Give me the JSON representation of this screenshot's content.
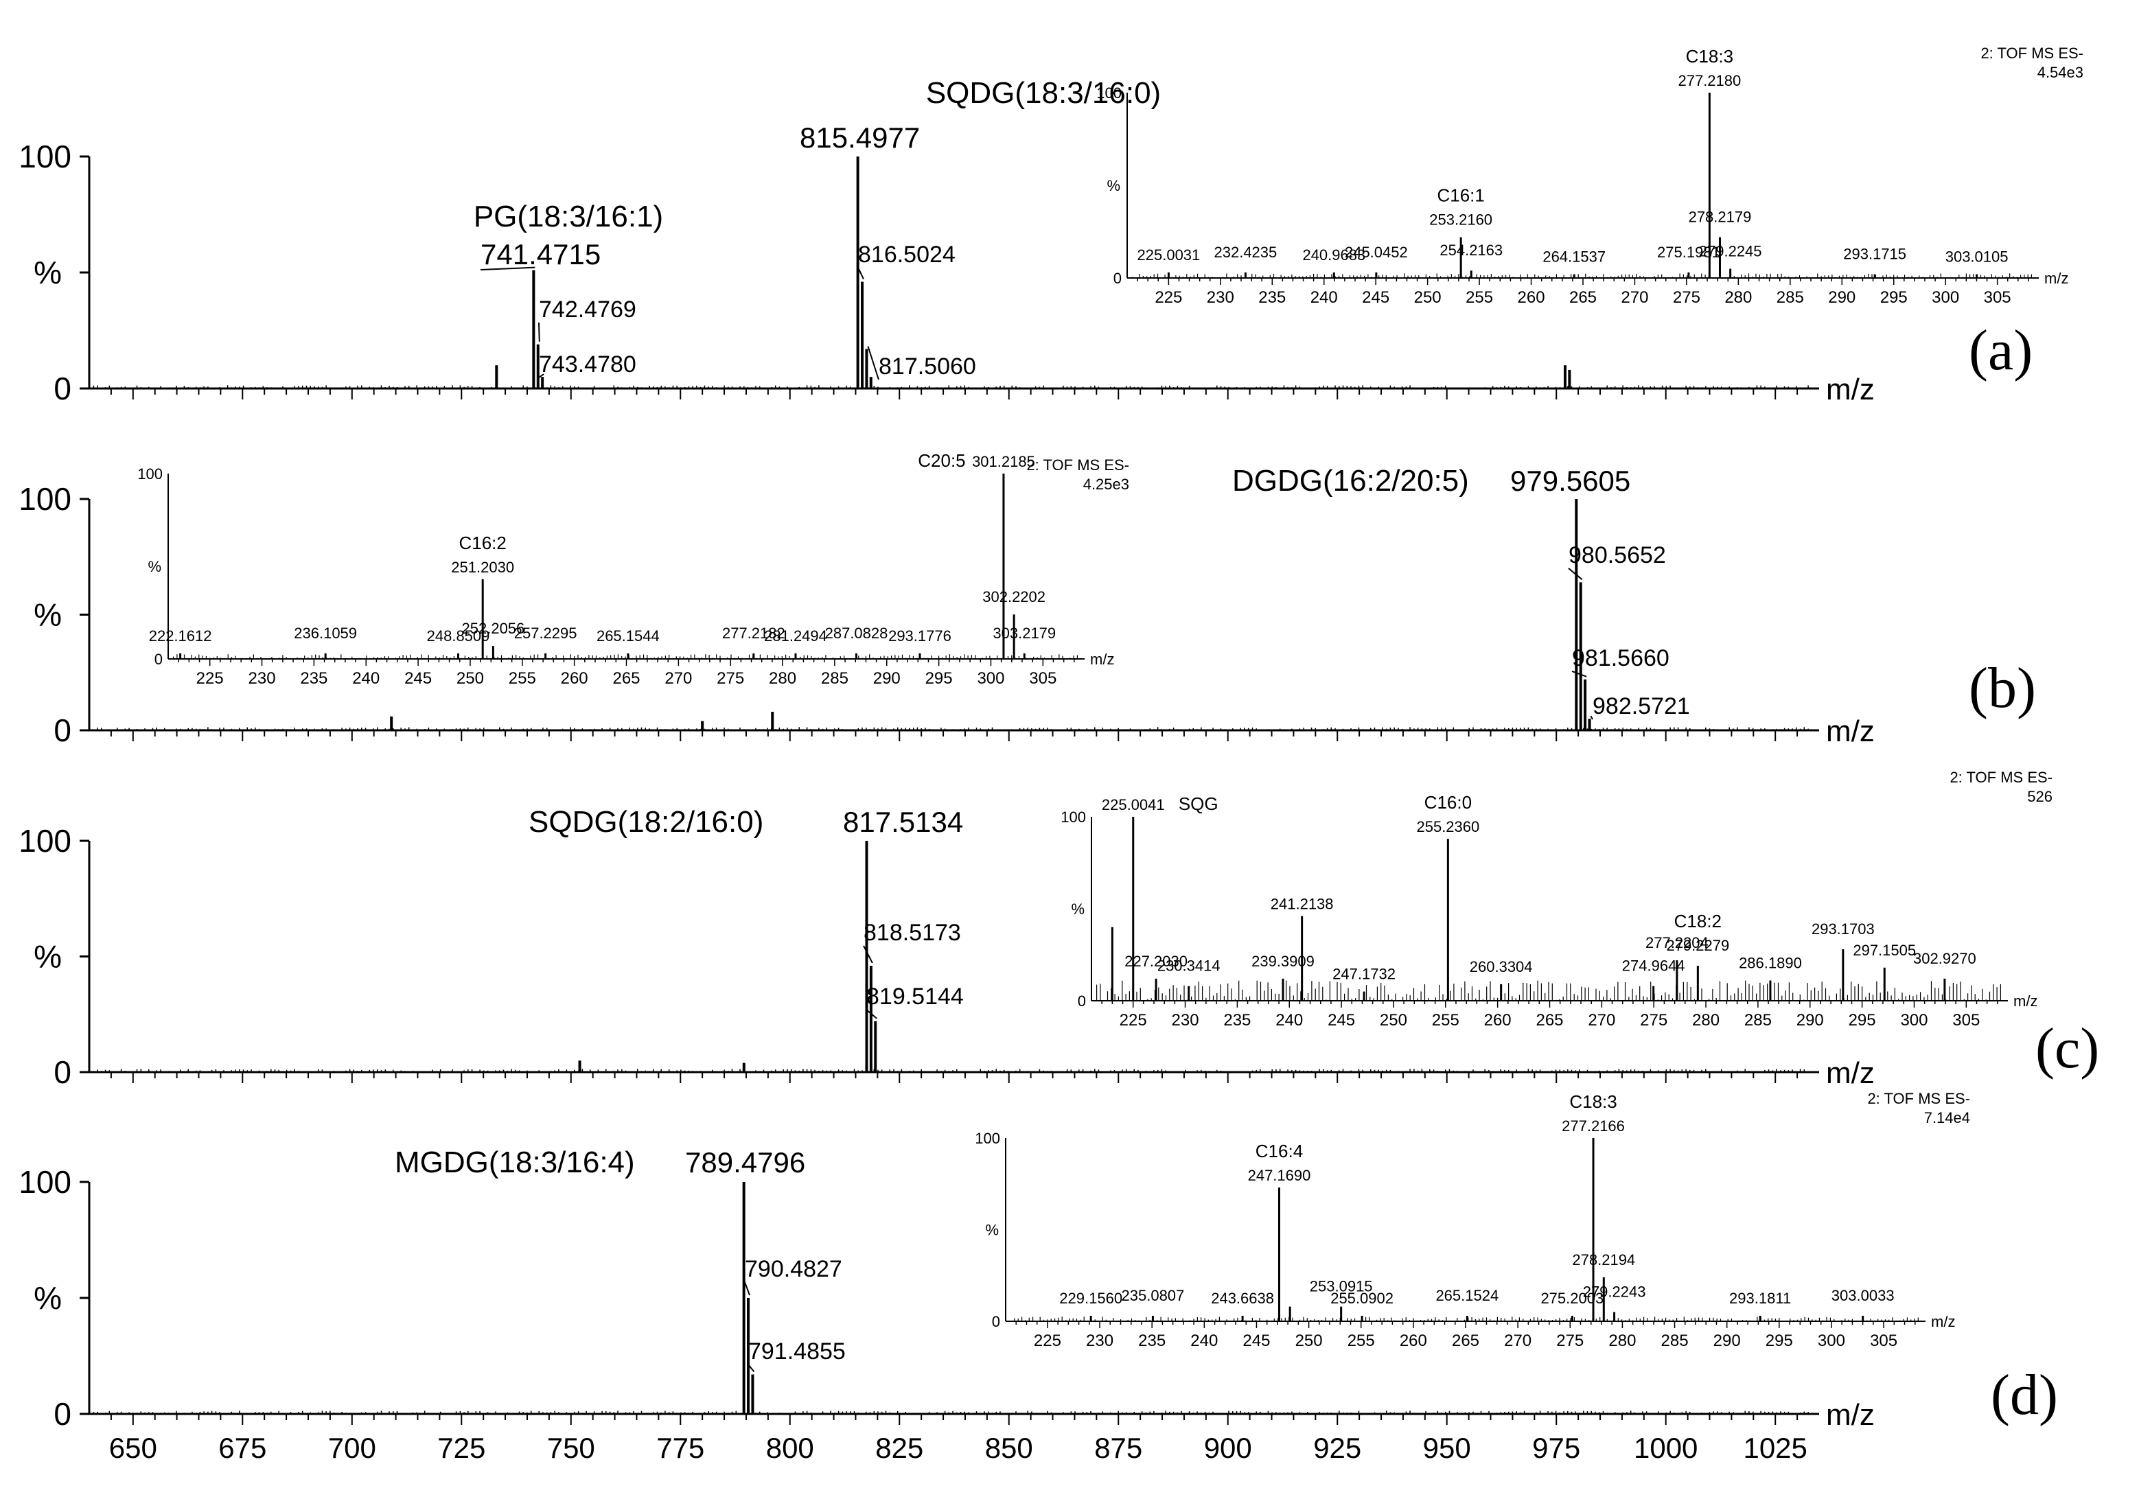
{
  "figure_description_free": true,
  "axis": {
    "x_unit": "m/z",
    "y_unit": "%",
    "y_ticks": [
      "0",
      "100"
    ],
    "y_mid": "%",
    "main_xlim": [
      640,
      1035
    ],
    "main_xticks": [
      650,
      675,
      700,
      725,
      750,
      775,
      800,
      825,
      850,
      875,
      900,
      925,
      950,
      975,
      1000,
      1025
    ],
    "inset_xlim": [
      221,
      309
    ],
    "inset_xticks": [
      225,
      230,
      235,
      240,
      245,
      250,
      255,
      260,
      265,
      270,
      275,
      280,
      285,
      290,
      295,
      300,
      305
    ]
  },
  "chart_data": [
    {
      "type": "line",
      "panel": "(a)",
      "title": "",
      "xlabel": "m/z",
      "ylabel": "%",
      "ylim": [
        0,
        100
      ],
      "xlim": [
        640,
        1035
      ],
      "compound_label": "SQDG(18:3/16:0)",
      "compound_label_2": "PG(18:3/16:1)",
      "peaks": [
        {
          "mz": 733.0,
          "intensity": 10,
          "label": ""
        },
        {
          "mz": 741.4715,
          "intensity": 51,
          "label": "741.4715"
        },
        {
          "mz": 742.4769,
          "intensity": 19,
          "label": "742.4769"
        },
        {
          "mz": 743.478,
          "intensity": 5,
          "label": "743.4780"
        },
        {
          "mz": 815.4977,
          "intensity": 100,
          "label": "815.4977"
        },
        {
          "mz": 816.5024,
          "intensity": 46,
          "label": "816.5024"
        },
        {
          "mz": 817.506,
          "intensity": 17,
          "label": "817.5060"
        },
        {
          "mz": 818.5,
          "intensity": 5,
          "label": ""
        },
        {
          "mz": 977.0,
          "intensity": 10,
          "label": ""
        },
        {
          "mz": 978.0,
          "intensity": 8,
          "label": ""
        }
      ],
      "inset": {
        "header": "2: TOF MS ES-",
        "scale": "4.54e3",
        "ylim": [
          0,
          100
        ],
        "xlim": [
          221,
          309
        ],
        "peaks": [
          {
            "mz": 225.0031,
            "intensity": 3,
            "label": "225.0031",
            "group": ""
          },
          {
            "mz": 232.4235,
            "intensity": 3,
            "label": "232.4235",
            "group": ""
          },
          {
            "mz": 240.9683,
            "intensity": 3,
            "label": "240.9683",
            "group": ""
          },
          {
            "mz": 245.0452,
            "intensity": 3,
            "label": "245.0452",
            "group": ""
          },
          {
            "mz": 253.216,
            "intensity": 22,
            "label": "253.2160",
            "group": "C16:1"
          },
          {
            "mz": 254.2163,
            "intensity": 4,
            "label": "254.2163",
            "group": ""
          },
          {
            "mz": 264.1537,
            "intensity": 2,
            "label": "264.1537",
            "group": ""
          },
          {
            "mz": 275.1981,
            "intensity": 3,
            "label": "275.1981",
            "group": ""
          },
          {
            "mz": 277.218,
            "intensity": 100,
            "label": "277.2180",
            "group": "C18:3"
          },
          {
            "mz": 278.2179,
            "intensity": 22,
            "label": "278.2179",
            "group": ""
          },
          {
            "mz": 279.2245,
            "intensity": 5,
            "label": "279.2245",
            "group": ""
          },
          {
            "mz": 293.1715,
            "intensity": 2,
            "label": "293.1715",
            "group": ""
          },
          {
            "mz": 303.0105,
            "intensity": 2,
            "label": "303.0105",
            "group": ""
          }
        ]
      }
    },
    {
      "type": "line",
      "panel": "(b)",
      "title": "",
      "xlabel": "m/z",
      "ylabel": "%",
      "ylim": [
        0,
        100
      ],
      "xlim": [
        640,
        1035
      ],
      "compound_label": "DGDG(16:2/20:5)",
      "peaks": [
        {
          "mz": 709.0,
          "intensity": 6,
          "label": ""
        },
        {
          "mz": 780.0,
          "intensity": 4,
          "label": ""
        },
        {
          "mz": 796.0,
          "intensity": 8,
          "label": ""
        },
        {
          "mz": 979.5605,
          "intensity": 100,
          "label": "979.5605"
        },
        {
          "mz": 980.5652,
          "intensity": 64,
          "label": "980.5652"
        },
        {
          "mz": 981.566,
          "intensity": 22,
          "label": "981.5660"
        },
        {
          "mz": 982.5721,
          "intensity": 5,
          "label": "982.5721"
        }
      ],
      "inset": {
        "header": "2: TOF MS ES-",
        "scale": "4.25e3",
        "ylim": [
          0,
          100
        ],
        "xlim": [
          221,
          309
        ],
        "peaks": [
          {
            "mz": 222.1612,
            "intensity": 3,
            "label": "222.1612",
            "group": ""
          },
          {
            "mz": 236.1059,
            "intensity": 3,
            "label": "236.1059",
            "group": ""
          },
          {
            "mz": 248.8509,
            "intensity": 3,
            "label": "248.8509",
            "group": ""
          },
          {
            "mz": 251.203,
            "intensity": 43,
            "label": "251.2030",
            "group": "C16:2"
          },
          {
            "mz": 252.2056,
            "intensity": 7,
            "label": "252.2056",
            "group": ""
          },
          {
            "mz": 257.2295,
            "intensity": 3,
            "label": "257.2295",
            "group": ""
          },
          {
            "mz": 265.1544,
            "intensity": 3,
            "label": "265.1544",
            "group": ""
          },
          {
            "mz": 277.2182,
            "intensity": 3,
            "label": "277.2182",
            "group": ""
          },
          {
            "mz": 281.2494,
            "intensity": 3,
            "label": "281.2494",
            "group": ""
          },
          {
            "mz": 287.0828,
            "intensity": 3,
            "label": "287.0828",
            "group": ""
          },
          {
            "mz": 293.1776,
            "intensity": 3,
            "label": "293.1776",
            "group": ""
          },
          {
            "mz": 301.2185,
            "intensity": 100,
            "label": "301.2185",
            "group": "C20:5"
          },
          {
            "mz": 302.2202,
            "intensity": 24,
            "label": "302.2202",
            "group": ""
          },
          {
            "mz": 303.2179,
            "intensity": 3,
            "label": "303.2179",
            "group": ""
          }
        ]
      }
    },
    {
      "type": "line",
      "panel": "(c)",
      "title": "",
      "xlabel": "m/z",
      "ylabel": "%",
      "ylim": [
        0,
        100
      ],
      "xlim": [
        640,
        1035
      ],
      "compound_label": "SQDG(18:2/16:0)",
      "peaks": [
        {
          "mz": 752.0,
          "intensity": 5,
          "label": ""
        },
        {
          "mz": 789.5,
          "intensity": 4,
          "label": ""
        },
        {
          "mz": 817.5134,
          "intensity": 100,
          "label": "817.5134"
        },
        {
          "mz": 818.5173,
          "intensity": 46,
          "label": "818.5173"
        },
        {
          "mz": 819.5144,
          "intensity": 22,
          "label": "819.5144"
        }
      ],
      "inset": {
        "header": "2: TOF MS ES-",
        "scale": "526",
        "ylim": [
          0,
          100
        ],
        "xlim": [
          221,
          309
        ],
        "peaks": [
          {
            "mz": 223.0,
            "intensity": 40,
            "label": "",
            "group": ""
          },
          {
            "mz": 225.0041,
            "intensity": 100,
            "label": "225.0041",
            "group": "SQG"
          },
          {
            "mz": 227.203,
            "intensity": 12,
            "label": "227.2030",
            "group": ""
          },
          {
            "mz": 230.3414,
            "intensity": 8,
            "label": "230.3414",
            "group": ""
          },
          {
            "mz": 239.3909,
            "intensity": 12,
            "label": "239.3909",
            "group": ""
          },
          {
            "mz": 241.2138,
            "intensity": 46,
            "label": "241.2138",
            "group": ""
          },
          {
            "mz": 247.1732,
            "intensity": 5,
            "label": "247.1732",
            "group": ""
          },
          {
            "mz": 255.236,
            "intensity": 88,
            "label": "255.2360",
            "group": "C16:0"
          },
          {
            "mz": 260.3304,
            "intensity": 9,
            "label": "260.3304",
            "group": ""
          },
          {
            "mz": 274.9644,
            "intensity": 8,
            "label": "274.9644",
            "group": ""
          },
          {
            "mz": 277.2204,
            "intensity": 22,
            "label": "277.2204",
            "group": ""
          },
          {
            "mz": 279.2279,
            "intensity": 19,
            "label": "279.2279",
            "group": "C18:2"
          },
          {
            "mz": 286.189,
            "intensity": 11,
            "label": "286.1890",
            "group": ""
          },
          {
            "mz": 293.1703,
            "intensity": 28,
            "label": "293.1703",
            "group": ""
          },
          {
            "mz": 297.1505,
            "intensity": 18,
            "label": "297.1505",
            "group": ""
          },
          {
            "mz": 302.927,
            "intensity": 12,
            "label": "302.9270",
            "group": ""
          }
        ]
      }
    },
    {
      "type": "line",
      "panel": "(d)",
      "title": "",
      "xlabel": "m/z",
      "ylabel": "%",
      "ylim": [
        0,
        100
      ],
      "xlim": [
        640,
        1035
      ],
      "compound_label": "MGDG(18:3/16:4)",
      "peaks": [
        {
          "mz": 789.4796,
          "intensity": 100,
          "label": "789.4796"
        },
        {
          "mz": 790.4827,
          "intensity": 50,
          "label": "790.4827"
        },
        {
          "mz": 791.4855,
          "intensity": 17,
          "label": "791.4855"
        }
      ],
      "inset": {
        "header": "2: TOF MS ES-",
        "scale": "7.14e4",
        "ylim": [
          0,
          100
        ],
        "xlim": [
          221,
          309
        ],
        "peaks": [
          {
            "mz": 229.156,
            "intensity": 3,
            "label": "229.1560",
            "group": ""
          },
          {
            "mz": 235.0807,
            "intensity": 3,
            "label": "235.0807",
            "group": ""
          },
          {
            "mz": 243.6638,
            "intensity": 3,
            "label": "243.6638",
            "group": ""
          },
          {
            "mz": 247.169,
            "intensity": 73,
            "label": "247.1690",
            "group": "C16:4"
          },
          {
            "mz": 248.2,
            "intensity": 8,
            "label": "",
            "group": ""
          },
          {
            "mz": 253.0915,
            "intensity": 8,
            "label": "253.0915",
            "group": ""
          },
          {
            "mz": 255.0902,
            "intensity": 3,
            "label": "255.0902",
            "group": ""
          },
          {
            "mz": 265.1524,
            "intensity": 3,
            "label": "265.1524",
            "group": ""
          },
          {
            "mz": 275.2003,
            "intensity": 3,
            "label": "275.2003",
            "group": ""
          },
          {
            "mz": 277.2166,
            "intensity": 100,
            "label": "277.2166",
            "group": "C18:3"
          },
          {
            "mz": 278.2194,
            "intensity": 24,
            "label": "278.2194",
            "group": ""
          },
          {
            "mz": 279.2243,
            "intensity": 5,
            "label": "279.2243",
            "group": ""
          },
          {
            "mz": 293.1811,
            "intensity": 3,
            "label": "293.1811",
            "group": ""
          },
          {
            "mz": 303.0033,
            "intensity": 3,
            "label": "303.0033",
            "group": ""
          }
        ]
      }
    }
  ]
}
